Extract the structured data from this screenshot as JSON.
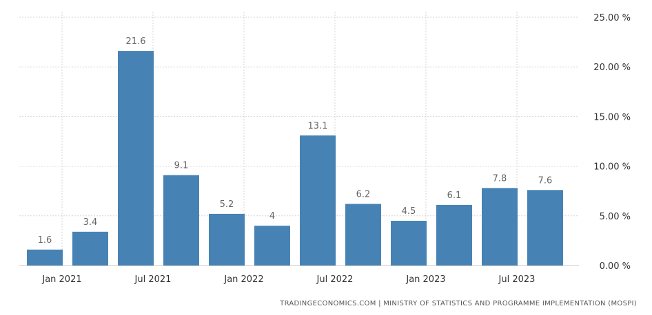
{
  "chart_data": {
    "type": "bar",
    "categories": [
      "Jan 2021",
      "Apr 2021",
      "Jul 2021",
      "Oct 2021",
      "Jan 2022",
      "Apr 2022",
      "Jul 2022",
      "Oct 2022",
      "Jan 2023",
      "Apr 2023",
      "Jul 2023",
      "Oct 2023"
    ],
    "values": [
      1.6,
      3.4,
      21.6,
      9.1,
      5.2,
      4,
      13.1,
      6.2,
      4.5,
      6.1,
      7.8,
      7.6
    ],
    "value_labels": [
      "1.6",
      "3.4",
      "21.6",
      "9.1",
      "5.2",
      "4",
      "13.1",
      "6.2",
      "4.5",
      "6.1",
      "7.8",
      "7.6"
    ],
    "x_tick_labels": [
      "Jan 2021",
      "Jul 2021",
      "Jan 2022",
      "Jul 2022",
      "Jan 2023",
      "Jul 2023"
    ],
    "y_ticks": [
      0,
      5,
      10,
      15,
      20,
      25
    ],
    "y_tick_labels": [
      "0.00 %",
      "5.00 %",
      "10.00 %",
      "15.00 %",
      "20.00 %",
      "25.00 %"
    ],
    "ylim": [
      0,
      25
    ],
    "title": "",
    "xlabel": "",
    "ylabel": "",
    "grid": true,
    "bar_color": "#4682b4"
  },
  "source": "TRADINGECONOMICS.COM  |  MINISTRY OF STATISTICS AND PROGRAMME IMPLEMENTATION (MOSPI)"
}
